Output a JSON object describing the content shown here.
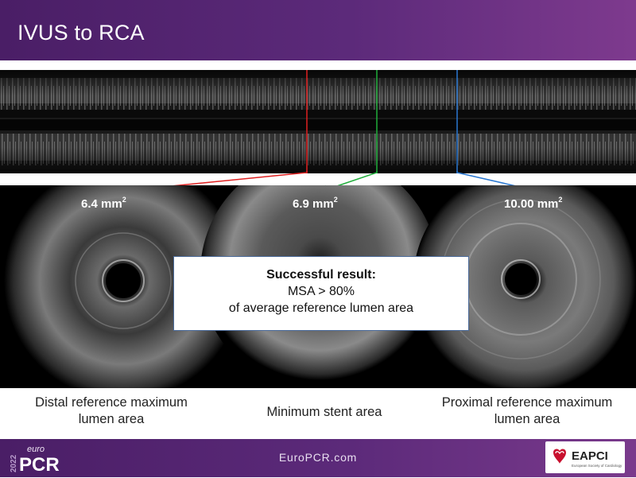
{
  "slide": {
    "title": "IVUS to RCA"
  },
  "measurements": {
    "distal": {
      "value": "6.4",
      "unit": "mm",
      "exponent": "2",
      "marker_color": "#e02020"
    },
    "msa": {
      "value": "6.9",
      "unit": "mm",
      "exponent": "2",
      "marker_color": "#1fae3a"
    },
    "proximal": {
      "value": "10.00",
      "unit": "mm",
      "exponent": "2",
      "marker_color": "#2a78d2"
    }
  },
  "result_box": {
    "title": "Successful result:",
    "line1": "MSA > 80%",
    "line2": "of average reference lumen area"
  },
  "captions": {
    "distal": [
      "Distal reference maximum",
      "lumen area"
    ],
    "msa": [
      "Minimum stent area"
    ],
    "proximal": [
      "Proximal reference maximum",
      "lumen area"
    ]
  },
  "footer": {
    "url": "EuroPCR.com",
    "year_text": "2022",
    "logo_small": "euro",
    "logo_big": "PCR",
    "eapci_text": "EAPCI",
    "eapci_subtext": "European Society of Cardiology"
  },
  "colors": {
    "header_purple": "#5c2a7a",
    "red_marker": "#e02020",
    "green_marker": "#1fae3a",
    "blue_marker": "#2a78d2"
  }
}
